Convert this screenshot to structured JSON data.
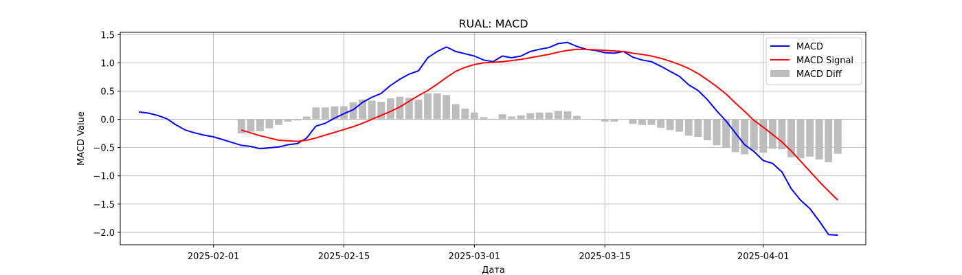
{
  "chart_data": {
    "type": "line",
    "title": "RUAL: MACD",
    "xlabel": "Дата",
    "ylabel": "MACD Value",
    "xlim": [
      "2025-01-22",
      "2025-04-12"
    ],
    "ylim": [
      -2.22,
      1.54
    ],
    "x_ticks": [
      "2025-02-01",
      "2025-02-15",
      "2025-03-01",
      "2025-03-15",
      "2025-04-01"
    ],
    "y_ticks": [
      1.5,
      1.0,
      0.5,
      0.0,
      -0.5,
      -1.0,
      -1.5,
      -2.0
    ],
    "y_tick_labels": [
      "1.5",
      "1.0",
      "0.5",
      "0.0",
      "−0.5",
      "−1.0",
      "−1.5",
      "−2.0"
    ],
    "grid": true,
    "legend_position": "upper right",
    "series": [
      {
        "name": "MACD",
        "kind": "line",
        "color": "#0000ff",
        "points": [
          [
            "2025-01-24",
            0.13
          ],
          [
            "2025-01-25",
            0.11
          ],
          [
            "2025-01-26",
            0.07
          ],
          [
            "2025-01-27",
            0.01
          ],
          [
            "2025-01-28",
            -0.1
          ],
          [
            "2025-01-29",
            -0.19
          ],
          [
            "2025-01-30",
            -0.24
          ],
          [
            "2025-01-31",
            -0.28
          ],
          [
            "2025-02-01",
            -0.31
          ],
          [
            "2025-02-02",
            -0.36
          ],
          [
            "2025-02-04",
            -0.46
          ],
          [
            "2025-02-05",
            -0.48
          ],
          [
            "2025-02-06",
            -0.52
          ],
          [
            "2025-02-08",
            -0.49
          ],
          [
            "2025-02-09",
            -0.45
          ],
          [
            "2025-02-10",
            -0.43
          ],
          [
            "2025-02-11",
            -0.33
          ],
          [
            "2025-02-12",
            -0.12
          ],
          [
            "2025-02-13",
            -0.07
          ],
          [
            "2025-02-14",
            0.02
          ],
          [
            "2025-02-15",
            0.1
          ],
          [
            "2025-02-16",
            0.17
          ],
          [
            "2025-02-17",
            0.3
          ],
          [
            "2025-02-18",
            0.39
          ],
          [
            "2025-02-19",
            0.46
          ],
          [
            "2025-02-20",
            0.6
          ],
          [
            "2025-02-21",
            0.71
          ],
          [
            "2025-02-22",
            0.8
          ],
          [
            "2025-02-23",
            0.86
          ],
          [
            "2025-02-24",
            1.09
          ],
          [
            "2025-02-25",
            1.2
          ],
          [
            "2025-02-26",
            1.28
          ],
          [
            "2025-02-27",
            1.2
          ],
          [
            "2025-02-28",
            1.16
          ],
          [
            "2025-03-01",
            1.12
          ],
          [
            "2025-03-02",
            1.05
          ],
          [
            "2025-03-03",
            1.02
          ],
          [
            "2025-03-04",
            1.12
          ],
          [
            "2025-03-05",
            1.09
          ],
          [
            "2025-03-06",
            1.12
          ],
          [
            "2025-03-07",
            1.2
          ],
          [
            "2025-03-08",
            1.24
          ],
          [
            "2025-03-09",
            1.27
          ],
          [
            "2025-03-10",
            1.34
          ],
          [
            "2025-03-11",
            1.36
          ],
          [
            "2025-03-12",
            1.29
          ],
          [
            "2025-03-13",
            1.24
          ],
          [
            "2025-03-14",
            1.22
          ],
          [
            "2025-03-15",
            1.18
          ],
          [
            "2025-03-16",
            1.17
          ],
          [
            "2025-03-17",
            1.2
          ],
          [
            "2025-03-18",
            1.1
          ],
          [
            "2025-03-19",
            1.05
          ],
          [
            "2025-03-20",
            1.02
          ],
          [
            "2025-03-21",
            0.94
          ],
          [
            "2025-03-22",
            0.85
          ],
          [
            "2025-03-23",
            0.76
          ],
          [
            "2025-03-24",
            0.61
          ],
          [
            "2025-03-25",
            0.51
          ],
          [
            "2025-03-26",
            0.35
          ],
          [
            "2025-03-27",
            0.15
          ],
          [
            "2025-03-28",
            -0.03
          ],
          [
            "2025-03-29",
            -0.24
          ],
          [
            "2025-03-30",
            -0.45
          ],
          [
            "2025-03-31",
            -0.57
          ],
          [
            "2025-04-01",
            -0.73
          ],
          [
            "2025-04-02",
            -0.78
          ],
          [
            "2025-04-03",
            -0.93
          ],
          [
            "2025-04-04",
            -1.23
          ],
          [
            "2025-04-05",
            -1.43
          ],
          [
            "2025-04-06",
            -1.58
          ],
          [
            "2025-04-07",
            -1.8
          ],
          [
            "2025-04-08",
            -2.04
          ],
          [
            "2025-04-09",
            -2.05
          ]
        ]
      },
      {
        "name": "MACD Signal",
        "kind": "line",
        "color": "#ff0000",
        "points": [
          [
            "2025-02-04",
            -0.19
          ],
          [
            "2025-02-05",
            -0.24
          ],
          [
            "2025-02-06",
            -0.29
          ],
          [
            "2025-02-07",
            -0.33
          ],
          [
            "2025-02-08",
            -0.37
          ],
          [
            "2025-02-09",
            -0.38
          ],
          [
            "2025-02-10",
            -0.39
          ],
          [
            "2025-02-11",
            -0.37
          ],
          [
            "2025-02-12",
            -0.33
          ],
          [
            "2025-02-13",
            -0.28
          ],
          [
            "2025-02-14",
            -0.23
          ],
          [
            "2025-02-15",
            -0.18
          ],
          [
            "2025-02-16",
            -0.13
          ],
          [
            "2025-02-17",
            -0.07
          ],
          [
            "2025-02-18",
            0.0
          ],
          [
            "2025-02-19",
            0.07
          ],
          [
            "2025-02-20",
            0.14
          ],
          [
            "2025-02-21",
            0.22
          ],
          [
            "2025-02-22",
            0.32
          ],
          [
            "2025-02-23",
            0.42
          ],
          [
            "2025-02-24",
            0.51
          ],
          [
            "2025-02-25",
            0.62
          ],
          [
            "2025-02-26",
            0.74
          ],
          [
            "2025-02-27",
            0.85
          ],
          [
            "2025-02-28",
            0.92
          ],
          [
            "2025-03-01",
            0.97
          ],
          [
            "2025-03-02",
            1.0
          ],
          [
            "2025-03-03",
            1.01
          ],
          [
            "2025-03-04",
            1.02
          ],
          [
            "2025-03-05",
            1.04
          ],
          [
            "2025-03-06",
            1.06
          ],
          [
            "2025-03-07",
            1.09
          ],
          [
            "2025-03-08",
            1.12
          ],
          [
            "2025-03-09",
            1.15
          ],
          [
            "2025-03-10",
            1.19
          ],
          [
            "2025-03-11",
            1.22
          ],
          [
            "2025-03-12",
            1.24
          ],
          [
            "2025-03-13",
            1.24
          ],
          [
            "2025-03-14",
            1.23
          ],
          [
            "2025-03-15",
            1.22
          ],
          [
            "2025-03-16",
            1.21
          ],
          [
            "2025-03-17",
            1.2
          ],
          [
            "2025-03-18",
            1.17
          ],
          [
            "2025-03-19",
            1.15
          ],
          [
            "2025-03-20",
            1.12
          ],
          [
            "2025-03-21",
            1.08
          ],
          [
            "2025-03-22",
            1.03
          ],
          [
            "2025-03-23",
            0.97
          ],
          [
            "2025-03-24",
            0.9
          ],
          [
            "2025-03-25",
            0.81
          ],
          [
            "2025-03-26",
            0.7
          ],
          [
            "2025-03-27",
            0.58
          ],
          [
            "2025-03-28",
            0.45
          ],
          [
            "2025-03-29",
            0.29
          ],
          [
            "2025-03-30",
            0.14
          ],
          [
            "2025-03-31",
            -0.02
          ],
          [
            "2025-04-01",
            -0.14
          ],
          [
            "2025-04-02",
            -0.27
          ],
          [
            "2025-04-03",
            -0.4
          ],
          [
            "2025-04-04",
            -0.56
          ],
          [
            "2025-04-05",
            -0.74
          ],
          [
            "2025-04-06",
            -0.92
          ],
          [
            "2025-04-07",
            -1.1
          ],
          [
            "2025-04-08",
            -1.27
          ],
          [
            "2025-04-09",
            -1.43
          ]
        ]
      },
      {
        "name": "MACD Diff",
        "kind": "bar",
        "color": "#bdbdbd",
        "points": [
          [
            "2025-02-04",
            -0.25
          ],
          [
            "2025-02-05",
            -0.22
          ],
          [
            "2025-02-06",
            -0.21
          ],
          [
            "2025-02-07",
            -0.16
          ],
          [
            "2025-02-08",
            -0.1
          ],
          [
            "2025-02-09",
            -0.04
          ],
          [
            "2025-02-10",
            -0.02
          ],
          [
            "2025-02-11",
            0.05
          ],
          [
            "2025-02-12",
            0.21
          ],
          [
            "2025-02-13",
            0.21
          ],
          [
            "2025-02-14",
            0.23
          ],
          [
            "2025-02-15",
            0.23
          ],
          [
            "2025-02-16",
            0.3
          ],
          [
            "2025-02-17",
            0.35
          ],
          [
            "2025-02-18",
            0.33
          ],
          [
            "2025-02-19",
            0.31
          ],
          [
            "2025-02-20",
            0.37
          ],
          [
            "2025-02-21",
            0.4
          ],
          [
            "2025-02-22",
            0.38
          ],
          [
            "2025-02-23",
            0.35
          ],
          [
            "2025-02-24",
            0.46
          ],
          [
            "2025-02-25",
            0.46
          ],
          [
            "2025-02-26",
            0.43
          ],
          [
            "2025-02-27",
            0.27
          ],
          [
            "2025-02-28",
            0.19
          ],
          [
            "2025-03-01",
            0.12
          ],
          [
            "2025-03-02",
            0.04
          ],
          [
            "2025-03-03",
            0.01
          ],
          [
            "2025-03-04",
            0.09
          ],
          [
            "2025-03-05",
            0.05
          ],
          [
            "2025-03-06",
            0.07
          ],
          [
            "2025-03-07",
            0.11
          ],
          [
            "2025-03-08",
            0.12
          ],
          [
            "2025-03-09",
            0.12
          ],
          [
            "2025-03-10",
            0.15
          ],
          [
            "2025-03-11",
            0.14
          ],
          [
            "2025-03-12",
            0.06
          ],
          [
            "2025-03-13",
            0.0
          ],
          [
            "2025-03-14",
            -0.01
          ],
          [
            "2025-03-15",
            -0.04
          ],
          [
            "2025-03-16",
            -0.04
          ],
          [
            "2025-03-17",
            0.0
          ],
          [
            "2025-03-18",
            -0.08
          ],
          [
            "2025-03-19",
            -0.1
          ],
          [
            "2025-03-20",
            -0.1
          ],
          [
            "2025-03-21",
            -0.15
          ],
          [
            "2025-03-22",
            -0.19
          ],
          [
            "2025-03-23",
            -0.22
          ],
          [
            "2025-03-24",
            -0.29
          ],
          [
            "2025-03-25",
            -0.31
          ],
          [
            "2025-03-26",
            -0.37
          ],
          [
            "2025-03-27",
            -0.46
          ],
          [
            "2025-03-28",
            -0.5
          ],
          [
            "2025-03-29",
            -0.58
          ],
          [
            "2025-03-30",
            -0.62
          ],
          [
            "2025-03-31",
            -0.55
          ],
          [
            "2025-04-01",
            -0.59
          ],
          [
            "2025-04-02",
            -0.52
          ],
          [
            "2025-04-03",
            -0.53
          ],
          [
            "2025-04-04",
            -0.67
          ],
          [
            "2025-04-05",
            -0.69
          ],
          [
            "2025-04-06",
            -0.66
          ],
          [
            "2025-04-07",
            -0.71
          ],
          [
            "2025-04-08",
            -0.76
          ],
          [
            "2025-04-09",
            -0.61
          ]
        ]
      }
    ]
  }
}
